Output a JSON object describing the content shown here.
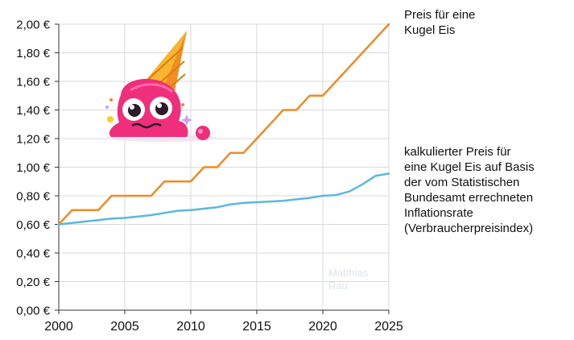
{
  "chart_data": {
    "type": "line",
    "x_ticks": [
      "2000",
      "2005",
      "2010",
      "2015",
      "2020",
      "2025"
    ],
    "y_ticks": [
      "0,00 €",
      "0,20 €",
      "0,40 €",
      "0,60 €",
      "0,80 €",
      "1,00 €",
      "1,20 €",
      "1,40 €",
      "1,60 €",
      "1,80 €",
      "2,00 €"
    ],
    "xlim": [
      2000,
      2025
    ],
    "ylim": [
      0,
      2.0
    ],
    "grid": true,
    "series": [
      {
        "name": "Preis für eine Kugel Eis",
        "color": "#f08a24",
        "style": "step",
        "x": [
          2000,
          2001,
          2002,
          2003,
          2004,
          2005,
          2006,
          2007,
          2008,
          2009,
          2010,
          2011,
          2012,
          2013,
          2014,
          2015,
          2016,
          2017,
          2018,
          2019,
          2020,
          2021,
          2022,
          2023,
          2024,
          2025
        ],
        "y": [
          0.6,
          0.7,
          0.7,
          0.7,
          0.8,
          0.8,
          0.8,
          0.8,
          0.9,
          0.9,
          0.9,
          1.0,
          1.0,
          1.1,
          1.1,
          1.2,
          1.3,
          1.4,
          1.4,
          1.5,
          1.5,
          1.6,
          1.7,
          1.8,
          1.9,
          2.0
        ]
      },
      {
        "name": "kalkulierter Preis für eine Kugel Eis auf Basis der vom Statistischen Bundesamt errechneten Inflationsrate (Verbraucherpreisindex)",
        "color": "#5bb8dc",
        "style": "line",
        "x": [
          2000,
          2001,
          2002,
          2003,
          2004,
          2005,
          2006,
          2007,
          2008,
          2009,
          2010,
          2011,
          2012,
          2013,
          2014,
          2015,
          2016,
          2017,
          2018,
          2019,
          2020,
          2021,
          2022,
          2023,
          2024,
          2025
        ],
        "y": [
          0.6,
          0.61,
          0.62,
          0.63,
          0.64,
          0.645,
          0.655,
          0.665,
          0.68,
          0.695,
          0.7,
          0.71,
          0.72,
          0.74,
          0.75,
          0.755,
          0.76,
          0.765,
          0.775,
          0.785,
          0.8,
          0.805,
          0.83,
          0.88,
          0.94,
          0.955
        ]
      }
    ]
  },
  "legend": {
    "orange_lines": [
      "Preis für eine",
      "Kugel Eis"
    ],
    "blue_lines": [
      "kalkulierter Preis für",
      "eine Kugel Eis auf Basis",
      "der vom Statistischen",
      "Bundesamt errechneten",
      "Inflationsrate",
      "(Verbraucherpreisindex)"
    ]
  },
  "watermark": [
    "Matthias",
    "Rau"
  ],
  "illustration": {
    "icon": "melting-ice-cream-icon"
  }
}
